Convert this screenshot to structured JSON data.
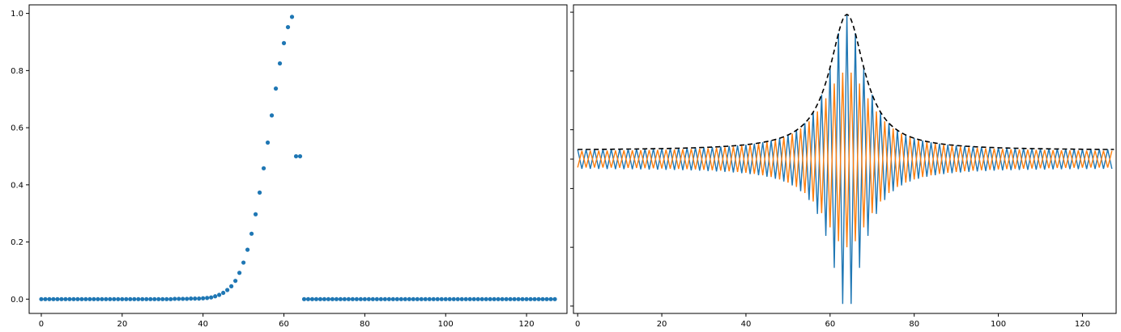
{
  "chart_data": [
    {
      "type": "scatter",
      "xlim": [
        -3,
        130
      ],
      "ylim": [
        -0.05,
        1.03
      ],
      "xticks": [
        "0",
        "20",
        "40",
        "60",
        "80",
        "100",
        "120"
      ],
      "xtick_values": [
        0,
        20,
        40,
        60,
        80,
        100,
        120
      ],
      "yticks": [
        "0.0",
        "0.2",
        "0.4",
        "0.6",
        "0.8",
        "1.0"
      ],
      "ytick_values": [
        0.0,
        0.2,
        0.4,
        0.6,
        0.8,
        1.0
      ],
      "grid": false,
      "marker_color": "#1f77b4",
      "series": [
        {
          "x": [
            0,
            1,
            2,
            3,
            4,
            5,
            6,
            7,
            8,
            9,
            10,
            11,
            12,
            13,
            14,
            15,
            16,
            17,
            18,
            19,
            20,
            21,
            22,
            23,
            24,
            25,
            26,
            27,
            28,
            29,
            30,
            31,
            32,
            33,
            34,
            35,
            36,
            37,
            38,
            39,
            40,
            41,
            42,
            43,
            44,
            45,
            46,
            47,
            48,
            49,
            50,
            51,
            52,
            53,
            54,
            55,
            56,
            57,
            58,
            59,
            60,
            61,
            62,
            63,
            64,
            65,
            66,
            67,
            68,
            69,
            70,
            71,
            72,
            73,
            74,
            75,
            76,
            77,
            78,
            79,
            80,
            81,
            82,
            83,
            84,
            85,
            86,
            87,
            88,
            89,
            90,
            91,
            92,
            93,
            94,
            95,
            96,
            97,
            98,
            99,
            100,
            101,
            102,
            103,
            104,
            105,
            106,
            107,
            108,
            109,
            110,
            111,
            112,
            113,
            114,
            115,
            116,
            117,
            118,
            119,
            120,
            121,
            122,
            123,
            124,
            125,
            126,
            127
          ],
          "y": [
            0,
            0,
            0,
            0,
            0,
            0,
            0,
            0,
            0,
            0,
            0,
            0,
            0,
            0,
            0,
            0,
            0,
            0,
            0,
            0,
            0,
            0,
            0,
            0,
            0,
            0,
            0,
            0,
            0,
            0,
            0,
            0,
            0,
            0.001,
            0.001,
            0.001,
            0.001,
            0.002,
            0.002,
            0.002,
            0.003,
            0.004,
            0.006,
            0.01,
            0.015,
            0.022,
            0.032,
            0.045,
            0.064,
            0.092,
            0.128,
            0.173,
            0.229,
            0.297,
            0.373,
            0.458,
            0.548,
            0.643,
            0.737,
            0.825,
            0.896,
            0.952,
            0.988,
            0.5,
            0.5,
            0,
            0,
            0,
            0,
            0,
            0,
            0,
            0,
            0,
            0,
            0,
            0,
            0,
            0,
            0,
            0,
            0,
            0,
            0,
            0,
            0,
            0,
            0,
            0,
            0,
            0,
            0,
            0,
            0,
            0,
            0,
            0,
            0,
            0,
            0,
            0,
            0,
            0,
            0,
            0,
            0,
            0,
            0,
            0,
            0,
            0,
            0,
            0,
            0,
            0,
            0,
            0,
            0,
            0,
            0,
            0,
            0,
            0,
            0,
            0,
            0,
            0,
            0
          ]
        }
      ]
    },
    {
      "type": "line",
      "xlim": [
        -1,
        128
      ],
      "ylim": [
        -1.05,
        1.05
      ],
      "xticks": [
        "0",
        "20",
        "40",
        "60",
        "80",
        "100",
        "120"
      ],
      "xtick_values": [
        0,
        20,
        40,
        60,
        80,
        100,
        120
      ],
      "ytick_values": [
        -1.0,
        -0.6,
        -0.2,
        0.0,
        0.2,
        0.6,
        1.0
      ],
      "yticks_labeled": false,
      "grid": false,
      "envelope": {
        "color": "#000000",
        "style": "dashed",
        "peak": 0.985,
        "center": 64,
        "half_width": 5,
        "floor": 0.06
      },
      "series": [
        {
          "color": "#1f77b4",
          "amplitude": 0.985,
          "half_width": 5,
          "offset_edges": 0.06,
          "phase": "even"
        },
        {
          "color": "#ff7f0e",
          "amplitude": 0.6,
          "half_width": 7,
          "offset_edges": 0.05,
          "phase": "odd"
        }
      ]
    }
  ]
}
